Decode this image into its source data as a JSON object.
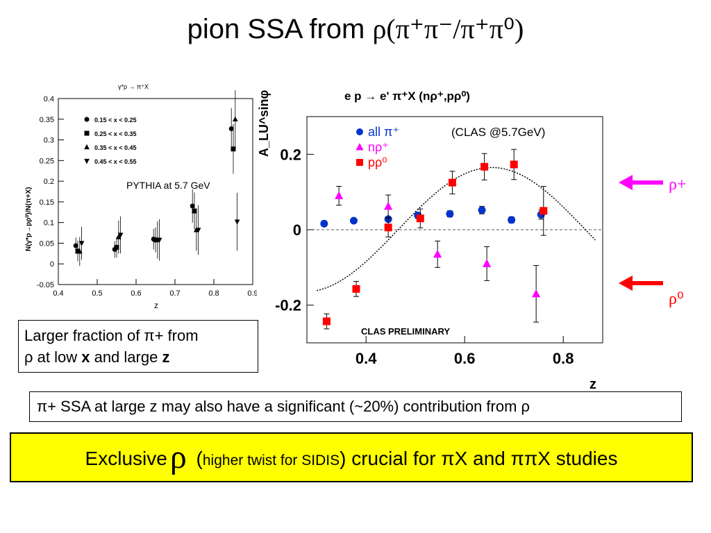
{
  "slide": {
    "title_prefix": "pion SSA from ",
    "title_formula": "ρ(π⁺π⁻/π⁺π⁰)",
    "fraction_box": {
      "line1": "Larger fraction of π+ from",
      "line2_a": "ρ at low ",
      "line2_b": "x",
      "line2_c": " and large ",
      "line2_d": "z"
    },
    "contribution_text": "π+ SSA at large z may also have a significant (~20%) contribution from ρ",
    "exclusive": {
      "part1": "Exclusive",
      "rho": "ρ",
      "paren_open": " (",
      "note": "higher twist for SIDIS",
      "paren_close": ")",
      "part2": " crucial for πX and ππX studies"
    },
    "arrows": [
      {
        "label": "ρ+",
        "color": "#ff00ff"
      },
      {
        "label": "ρ⁰",
        "color": "#ff0000"
      }
    ]
  },
  "chart_data": [
    {
      "type": "scatter",
      "title": "γ*p → π⁺X",
      "annotation": "PYTHIA at 5.7 GeV",
      "xlabel": "z",
      "ylabel": "N(γ*p→pρ⁰)/N(π+X)",
      "xlim": [
        0.4,
        0.9
      ],
      "ylim": [
        -0.05,
        0.4
      ],
      "xticks": [
        "0.4",
        "0.5",
        "0.6",
        "0.7",
        "0.8",
        "0.9"
      ],
      "yticks": [
        "-0.05",
        "0",
        "0.05",
        "0.1",
        "0.15",
        "0.2",
        "0.25",
        "0.3",
        "0.35",
        "0.4"
      ],
      "grid": false,
      "legend_position": "top-left",
      "series": [
        {
          "name": "0.15 < x < 0.25",
          "marker": "circle",
          "x": [
            0.445,
            0.545,
            0.645,
            0.745,
            0.845
          ],
          "y": [
            0.044,
            0.035,
            0.06,
            0.14,
            0.327
          ],
          "err": [
            0.02,
            0.02,
            0.025,
            0.04,
            0.05
          ]
        },
        {
          "name": "0.25 < x < 0.35",
          "marker": "square",
          "x": [
            0.45,
            0.55,
            0.65,
            0.75,
            0.85
          ],
          "y": [
            0.031,
            0.04,
            0.058,
            0.128,
            0.278
          ],
          "err": [
            0.025,
            0.025,
            0.03,
            0.045,
            0.06
          ]
        },
        {
          "name": "0.35 < x < 0.45",
          "marker": "triangle-up",
          "x": [
            0.455,
            0.555,
            0.655,
            0.755,
            0.855
          ],
          "y": [
            0.03,
            0.065,
            0.058,
            0.082,
            0.35
          ],
          "err": [
            0.035,
            0.04,
            0.045,
            0.05,
            0.07
          ]
        },
        {
          "name": "0.45 < x < 0.55",
          "marker": "triangle-down",
          "x": [
            0.46,
            0.56,
            0.66,
            0.76,
            0.86
          ],
          "y": [
            0.05,
            0.07,
            0.058,
            0.082,
            0.102
          ],
          "err": [
            0.04,
            0.045,
            0.05,
            0.06,
            0.07
          ]
        }
      ]
    },
    {
      "type": "scatter",
      "title": "e p → e' π⁺X (nρ⁺,pρ⁰)",
      "annotation_top": "(CLAS @5.7GeV)",
      "annotation_bottom": "CLAS PRELIMINARY",
      "xlabel": "z",
      "ylabel": "A_LU^sinφ",
      "xlim": [
        0.28,
        0.88
      ],
      "ylim": [
        -0.3,
        0.3
      ],
      "xticks": [
        "0.4",
        "0.6",
        "0.8"
      ],
      "yticks": [
        "0.2",
        "0",
        "-0.2"
      ],
      "grid": false,
      "legend_position": "top-left",
      "series": [
        {
          "name": "all π⁺",
          "color": "#0033cc",
          "marker": "circle",
          "x": [
            0.315,
            0.375,
            0.445,
            0.505,
            0.57,
            0.635,
            0.695,
            0.755
          ],
          "y": [
            0.016,
            0.024,
            0.028,
            0.038,
            0.042,
            0.052,
            0.026,
            0.04
          ],
          "err": [
            0.005,
            0.005,
            0.006,
            0.008,
            0.008,
            0.01,
            0.008,
            0.012
          ]
        },
        {
          "name": "nρ⁺",
          "color": "#ff00ff",
          "marker": "triangle-up",
          "x": [
            0.345,
            0.445,
            0.545,
            0.645,
            0.745
          ],
          "y": [
            0.09,
            0.062,
            -0.065,
            -0.09,
            -0.17
          ],
          "err": [
            0.025,
            0.03,
            0.035,
            0.045,
            0.075
          ]
        },
        {
          "name": "pρ⁰",
          "color": "#ff0000",
          "marker": "square",
          "x": [
            0.32,
            0.38,
            0.445,
            0.51,
            0.575,
            0.64,
            0.7,
            0.76
          ],
          "y": [
            -0.243,
            -0.157,
            0.006,
            0.03,
            0.125,
            0.167,
            0.173,
            0.05
          ],
          "err": [
            0.02,
            0.02,
            0.025,
            0.025,
            0.03,
            0.035,
            0.04,
            0.065
          ]
        }
      ],
      "fit_curve": "sin-like fit through pρ⁰ points"
    }
  ]
}
